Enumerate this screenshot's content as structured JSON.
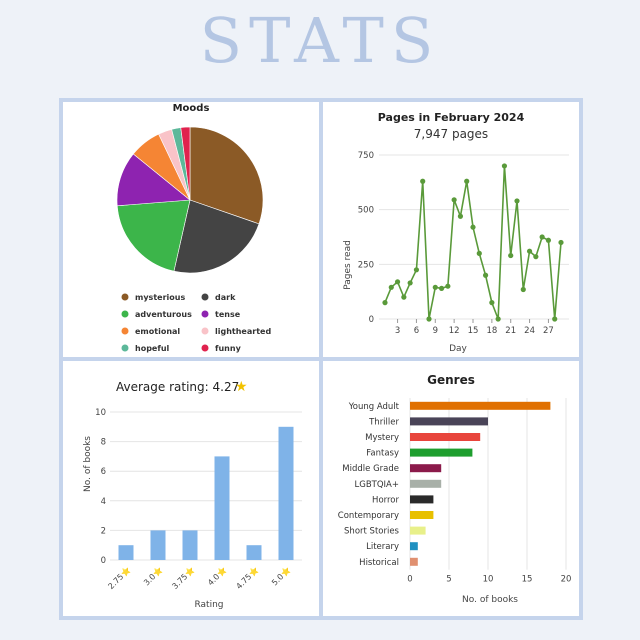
{
  "page_title": "STATS",
  "chart_data": [
    {
      "type": "pie",
      "title": "Moods",
      "labels": [
        "mysterious",
        "dark",
        "adventurous",
        "tense",
        "emotional",
        "lighthearted",
        "hopeful",
        "funny"
      ],
      "values": [
        30,
        23,
        20,
        12,
        7,
        3,
        2,
        2
      ],
      "colors": [
        "#8b5a26",
        "#444444",
        "#3cb54a",
        "#8e23b0",
        "#f58534",
        "#f9c3c8",
        "#5cb89a",
        "#e0224e"
      ],
      "legend_position": "bottom"
    },
    {
      "type": "line",
      "title": "Pages in February 2024",
      "subtitle": "7,947 pages",
      "xlabel": "Day",
      "ylabel": "Pages read",
      "x": [
        1,
        2,
        3,
        4,
        5,
        6,
        7,
        8,
        9,
        10,
        11,
        12,
        13,
        14,
        15,
        16,
        17,
        18,
        19,
        20,
        21,
        22,
        23,
        24,
        25,
        26,
        27,
        28,
        29
      ],
      "values": [
        75,
        145,
        170,
        100,
        165,
        225,
        630,
        0,
        145,
        140,
        150,
        545,
        470,
        630,
        420,
        300,
        200,
        75,
        0,
        700,
        290,
        540,
        135,
        310,
        285,
        375,
        360,
        0,
        350
      ],
      "x_ticks": [
        3,
        6,
        9,
        12,
        15,
        18,
        21,
        24,
        27
      ],
      "ylim": [
        0,
        750
      ],
      "y_ticks": [
        0,
        250,
        500,
        750
      ],
      "color": "#5a9a3a",
      "grid": true
    },
    {
      "type": "bar",
      "title": "Average rating: 4.27",
      "title_icon": "star-icon",
      "xlabel": "Rating",
      "ylabel": "No. of books",
      "categories": [
        "2.75⭐",
        "3.0⭐",
        "3.75⭐",
        "4.0⭐",
        "4.75⭐",
        "5.0⭐"
      ],
      "values": [
        1,
        2,
        2,
        7,
        1,
        9
      ],
      "ylim": [
        0,
        10
      ],
      "y_ticks": [
        0,
        2,
        4,
        6,
        8,
        10
      ],
      "color": "#7fb3e8",
      "grid": true
    },
    {
      "type": "bar",
      "orientation": "horizontal",
      "title": "Genres",
      "xlabel": "No. of books",
      "categories": [
        "Young Adult",
        "Thriller",
        "Mystery",
        "Fantasy",
        "Middle Grade",
        "LGBTQIA+",
        "Horror",
        "Contemporary",
        "Short Stories",
        "Literary",
        "Historical"
      ],
      "values": [
        18,
        10,
        9,
        8,
        4,
        4,
        3,
        3,
        2,
        1,
        1
      ],
      "colors": [
        "#e07000",
        "#4a4458",
        "#e8453c",
        "#1e9e2e",
        "#8b1a4a",
        "#a8b0a8",
        "#2a2a2a",
        "#e8c000",
        "#e8f08a",
        "#2090c0",
        "#e09070"
      ],
      "xlim": [
        0,
        20
      ],
      "x_ticks": [
        0,
        5,
        10,
        15,
        20
      ],
      "grid": true
    }
  ]
}
